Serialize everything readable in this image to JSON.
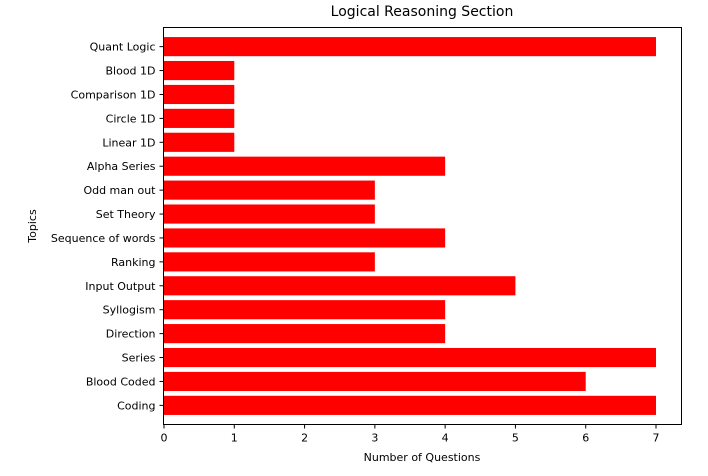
{
  "chart_data": {
    "type": "bar",
    "orientation": "horizontal",
    "title": "Logical Reasoning Section",
    "xlabel": "Number of Questions",
    "ylabel": "Topics",
    "categories": [
      "Coding",
      "Blood Coded",
      "Series",
      "Direction",
      "Syllogism",
      "Input Output",
      "Ranking",
      "Sequence of words",
      "Set Theory",
      "Odd man out",
      "Alpha Series",
      "Linear 1D",
      "Circle 1D",
      "Comparison 1D",
      "Blood 1D",
      "Quant Logic"
    ],
    "values": [
      7,
      6,
      7,
      4,
      4,
      5,
      3,
      4,
      3,
      3,
      4,
      1,
      1,
      1,
      1,
      7
    ],
    "xlim": [
      0,
      7.35
    ],
    "xticks": [
      0,
      1,
      2,
      3,
      4,
      5,
      6,
      7
    ],
    "bar_color": "#ff0000",
    "grid": false,
    "legend": "none"
  }
}
